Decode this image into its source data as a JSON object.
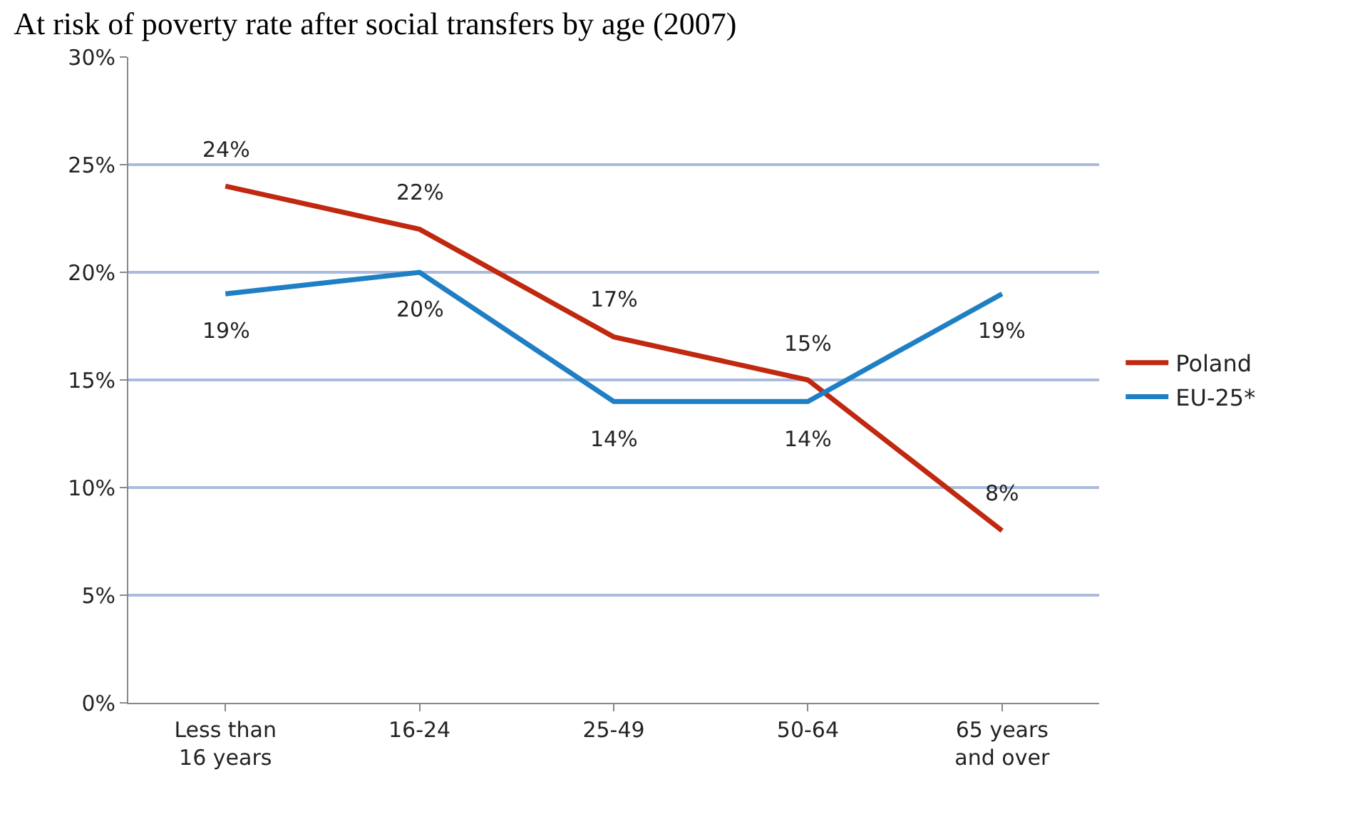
{
  "chart_data": {
    "type": "line",
    "title": "At risk of poverty rate after social transfers by age (2007)",
    "categories": [
      "Less than\n16 years",
      "16-24",
      "25-49",
      "50-64",
      "65 years\nand over"
    ],
    "series": [
      {
        "name": "Poland",
        "color": "#c0280f",
        "values": [
          24,
          22,
          17,
          15,
          8
        ],
        "value_labels": [
          "24%",
          "22%",
          "17%",
          "15%",
          "8%"
        ]
      },
      {
        "name": "EU-25*",
        "color": "#1f7fc4",
        "values": [
          19,
          20,
          14,
          14,
          19
        ],
        "value_labels": [
          "19%",
          "20%",
          "14%",
          "14%",
          "19%"
        ]
      }
    ],
    "ylim": [
      0,
      30
    ],
    "yticks": [
      {
        "value": 0,
        "label": "0%"
      },
      {
        "value": 5,
        "label": "5%"
      },
      {
        "value": 10,
        "label": "10%"
      },
      {
        "value": 15,
        "label": "15%"
      },
      {
        "value": 20,
        "label": "20%"
      },
      {
        "value": 25,
        "label": "25%"
      },
      {
        "value": 30,
        "label": "30%"
      }
    ],
    "grid": "y",
    "legend": "right",
    "marker": "none",
    "line_style": "solid"
  }
}
